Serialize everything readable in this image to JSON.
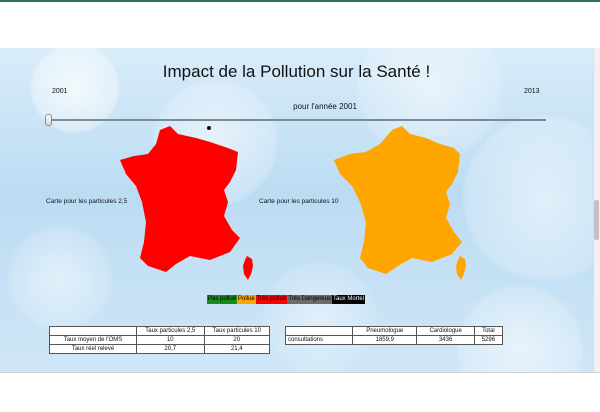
{
  "page": {
    "title": "Impact de la Pollution sur la Santé !",
    "year_start": "2001",
    "year_end": "2013",
    "year_caption": "pour l'année 2001"
  },
  "slider": {
    "min": 2001,
    "max": 2013,
    "value": 2001
  },
  "maps": [
    {
      "label": "Carte pour les particules 2,5",
      "fill": "#ff0000"
    },
    {
      "label": "Carte pour les particules 10",
      "fill": "#ffa500"
    }
  ],
  "legend": [
    {
      "label": "Pas pollué",
      "bg": "#1a8a1a",
      "fg": "#000000"
    },
    {
      "label": "Pollué",
      "bg": "#ffa500",
      "fg": "#000000"
    },
    {
      "label": "Très pollué",
      "bg": "#ff0000",
      "fg": "#000000"
    },
    {
      "label": "Très Dangereux",
      "bg": "#6b6b6b",
      "fg": "#000000"
    },
    {
      "label": "Taux Mortel",
      "bg": "#000000",
      "fg": "#ffffff"
    }
  ],
  "oms_table": {
    "headers": [
      "",
      "Taux particules 2,5",
      "Taux particules 10"
    ],
    "rows": [
      [
        "Taux moyen de l'OMS",
        "10",
        "20"
      ],
      [
        "Taux réel relevé",
        "20,7",
        "21,4"
      ]
    ]
  },
  "consultations_table": {
    "headers": [
      "",
      "Pneumologue",
      "Cardiologue",
      "Total"
    ],
    "rows": [
      [
        "consultations",
        "1859,9",
        "3436",
        "5296"
      ]
    ]
  }
}
